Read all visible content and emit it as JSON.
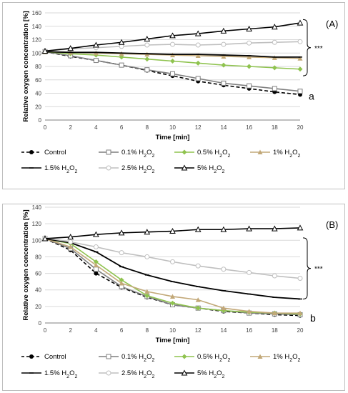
{
  "chart_data": [
    {
      "type": "line",
      "panel_label": "(A)",
      "xlabel": "Time [min]",
      "ylabel": "Relative oxygen concentration [%]",
      "xlim": [
        0,
        20
      ],
      "ylim": [
        0,
        160
      ],
      "x_ticks": [
        0,
        2,
        4,
        6,
        8,
        10,
        12,
        14,
        16,
        18,
        20
      ],
      "y_ticks": [
        0,
        20,
        40,
        60,
        80,
        100,
        120,
        140,
        160
      ],
      "grid": "horizontal",
      "legend_position": "bottom",
      "x": [
        0,
        2,
        4,
        6,
        8,
        10,
        12,
        14,
        16,
        18,
        20
      ],
      "series": [
        {
          "name": "Control",
          "color": "#000000",
          "dash": true,
          "marker": "dot",
          "values": [
            102,
            95,
            89,
            82,
            74,
            66,
            58,
            52,
            47,
            42,
            38
          ]
        },
        {
          "name": "0.1% H2O2",
          "color": "#7f7f7f",
          "marker": "square",
          "values": [
            102,
            96,
            89,
            82,
            75,
            69,
            62,
            55,
            51,
            47,
            43
          ]
        },
        {
          "name": "0.5% H2O2",
          "color": "#8fc34f",
          "marker": "diamond",
          "values": [
            102,
            99,
            97,
            94,
            91,
            88,
            85,
            82,
            80,
            78,
            76
          ]
        },
        {
          "name": "1% H2O2",
          "color": "#c2a878",
          "marker": "triangle",
          "values": [
            102,
            101,
            100,
            99,
            98,
            97,
            96,
            95,
            94,
            93,
            92
          ]
        },
        {
          "name": "1.5% H2O2",
          "color": "#000000",
          "marker": "dash",
          "values": [
            102,
            101,
            101,
            100,
            99,
            98,
            98,
            97,
            96,
            94,
            94
          ]
        },
        {
          "name": "2.5% H2O2",
          "color": "#bfbfbf",
          "marker": "circle",
          "values": [
            103,
            106,
            108,
            110,
            112,
            113,
            112,
            113,
            115,
            116,
            117
          ]
        },
        {
          "name": "5% H2O2",
          "color": "#000000",
          "marker": "triangle-open",
          "values": [
            103,
            107,
            112,
            116,
            121,
            126,
            129,
            133,
            136,
            139,
            145
          ]
        }
      ],
      "annotations": [
        "***",
        "a"
      ]
    },
    {
      "type": "line",
      "panel_label": "(B)",
      "xlabel": "Time [min]",
      "ylabel": "Relative oxygen concentration [%]",
      "xlim": [
        0,
        20
      ],
      "ylim": [
        0,
        140
      ],
      "x_ticks": [
        0,
        2,
        4,
        6,
        8,
        10,
        12,
        14,
        16,
        18,
        20
      ],
      "y_ticks": [
        0,
        20,
        40,
        60,
        80,
        100,
        120,
        140
      ],
      "grid": "horizontal",
      "legend_position": "bottom",
      "x": [
        0,
        2,
        4,
        6,
        8,
        10,
        12,
        14,
        16,
        18,
        20
      ],
      "series": [
        {
          "name": "Control",
          "color": "#000000",
          "dash": true,
          "marker": "dot",
          "values": [
            102,
            88,
            60,
            43,
            31,
            22,
            18,
            14,
            12,
            10,
            9
          ]
        },
        {
          "name": "0.1% H2O2",
          "color": "#7f7f7f",
          "marker": "square",
          "values": [
            102,
            90,
            65,
            44,
            32,
            22,
            18,
            15,
            12,
            11,
            10
          ]
        },
        {
          "name": "0.5% H2O2",
          "color": "#8fc34f",
          "marker": "diamond",
          "values": [
            102,
            96,
            74,
            52,
            33,
            24,
            18,
            15,
            13,
            12,
            11
          ]
        },
        {
          "name": "1% H2O2",
          "color": "#c2a878",
          "marker": "triangle",
          "values": [
            102,
            92,
            70,
            48,
            38,
            32,
            28,
            18,
            14,
            12,
            12
          ]
        },
        {
          "name": "1.5% H2O2",
          "color": "#000000",
          "marker": "dash",
          "values": [
            102,
            97,
            86,
            68,
            58,
            50,
            44,
            39,
            35,
            31,
            29
          ]
        },
        {
          "name": "2.5% H2O2",
          "color": "#bfbfbf",
          "marker": "circle",
          "values": [
            103,
            98,
            92,
            85,
            80,
            74,
            69,
            65,
            61,
            57,
            54
          ]
        },
        {
          "name": "5% H2O2",
          "color": "#000000",
          "marker": "triangle-open",
          "values": [
            102,
            104,
            107,
            109,
            110,
            111,
            113,
            113,
            114,
            114,
            115
          ]
        }
      ],
      "annotations": [
        "***",
        "b"
      ]
    }
  ]
}
